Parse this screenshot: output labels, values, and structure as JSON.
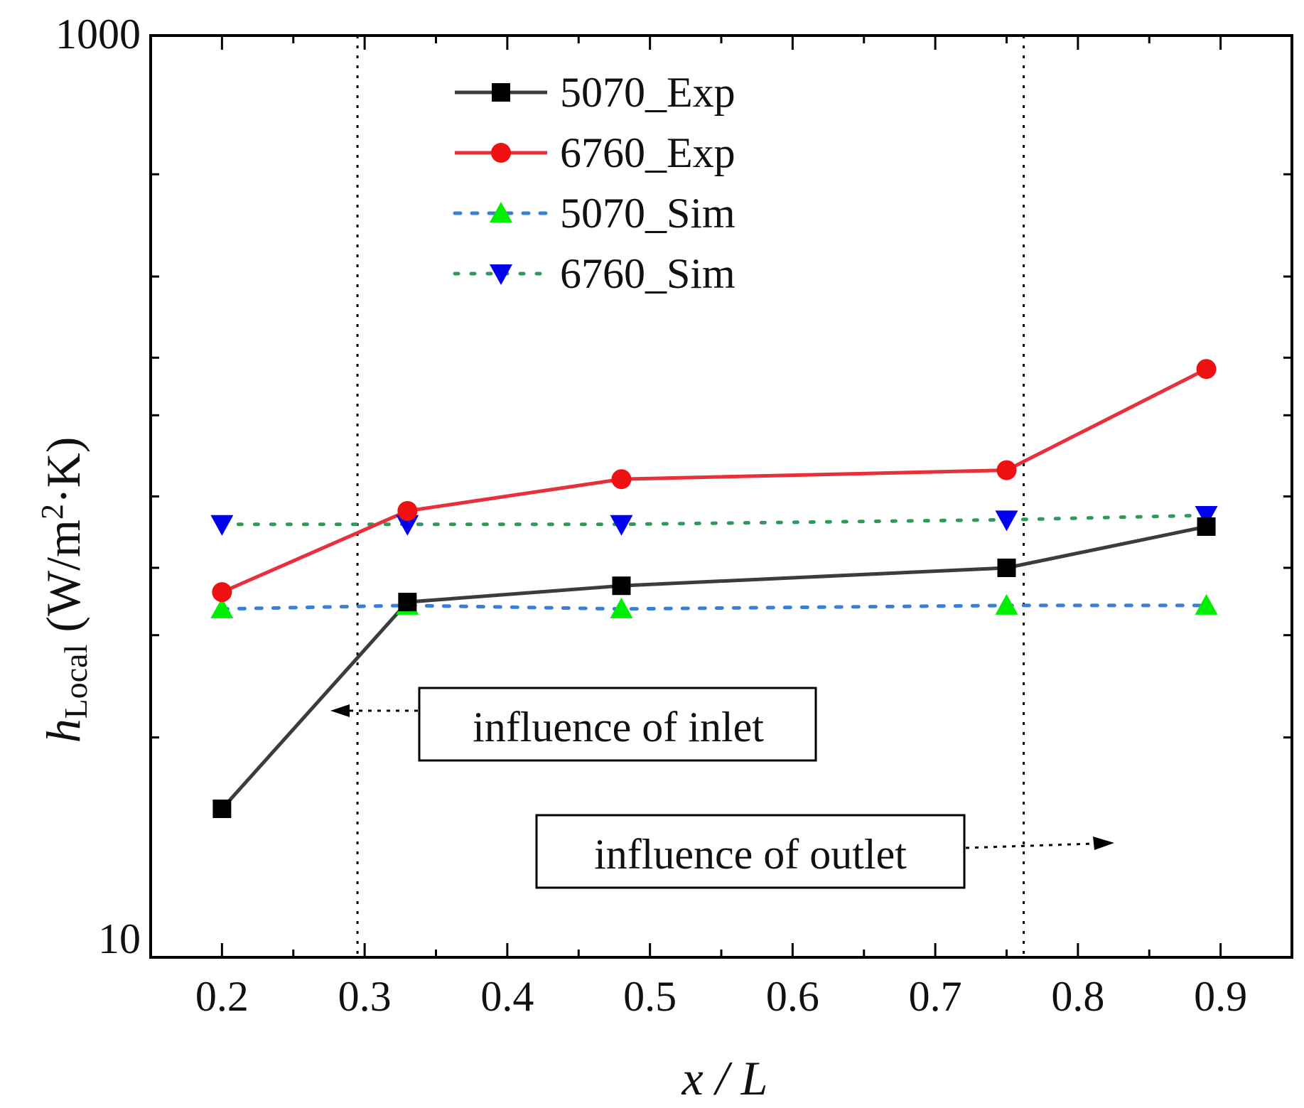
{
  "chart_data": {
    "type": "line",
    "title": "",
    "xlabel": "x / L",
    "ylabel_main": "h",
    "ylabel_sub": "Local",
    "ylabel_unit_prefix": " (W/m",
    "ylabel_unit_sup": "2",
    "ylabel_unit_suffix": "·K)",
    "x_scale": "linear",
    "y_scale": "log",
    "xlim": [
      0.15,
      0.95
    ],
    "ylim": [
      10,
      1000
    ],
    "x_ticks": [
      0.2,
      0.3,
      0.4,
      0.5,
      0.6,
      0.7,
      0.8,
      0.9
    ],
    "x_tick_labels": [
      "0.2",
      "0.3",
      "0.4",
      "0.5",
      "0.6",
      "0.7",
      "0.8",
      "0.9"
    ],
    "x_minor_ticks": [
      0.25,
      0.35,
      0.45,
      0.55,
      0.65,
      0.75,
      0.85
    ],
    "y_ticks": [
      10,
      1000
    ],
    "y_tick_labels": [
      "10",
      "1000"
    ],
    "y_minor_ticks": [
      30,
      50,
      70,
      100,
      150,
      200,
      300,
      500
    ],
    "legend_position": "top-center",
    "series": [
      {
        "name": "5070_Exp",
        "x": [
          0.2,
          0.33,
          0.48,
          0.75,
          0.89
        ],
        "values": [
          21,
          59,
          64,
          70,
          86
        ],
        "color": "#3c3c3c",
        "line": "solid",
        "marker": "square",
        "marker_color": "#000000"
      },
      {
        "name": "6760_Exp",
        "x": [
          0.2,
          0.33,
          0.48,
          0.75,
          0.89
        ],
        "values": [
          62,
          93,
          109,
          114,
          189
        ],
        "color": "#e8303a",
        "line": "solid",
        "marker": "circle",
        "marker_color": "#ee1111"
      },
      {
        "name": "5070_Sim",
        "x": [
          0.2,
          0.33,
          0.48,
          0.75,
          0.89
        ],
        "values": [
          57,
          58,
          57,
          58,
          58
        ],
        "color": "#3a7fd6",
        "line": "dashed",
        "marker": "triangle-up",
        "marker_color": "#00ee00"
      },
      {
        "name": "6760_Sim",
        "x": [
          0.2,
          0.33,
          0.48,
          0.75,
          0.89
        ],
        "values": [
          87,
          87,
          87,
          89,
          91
        ],
        "color": "#2e9a5a",
        "line": "dotted",
        "marker": "triangle-down",
        "marker_color": "#0000ee"
      }
    ],
    "vlines": [
      {
        "x": 0.295,
        "style": "dotted"
      },
      {
        "x": 0.762,
        "style": "dotted"
      }
    ],
    "annotations": [
      {
        "text": "influence of inlet",
        "arrow": "left"
      },
      {
        "text": "influence of outlet",
        "arrow": "right"
      }
    ]
  }
}
